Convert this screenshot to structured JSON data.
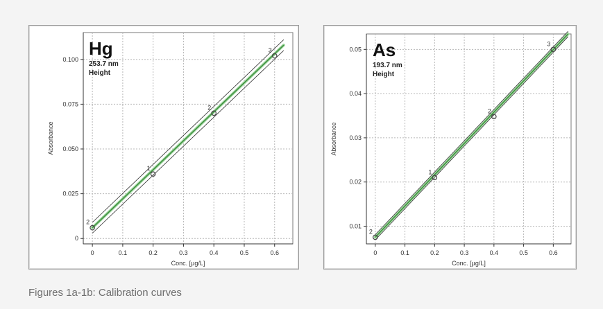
{
  "caption": "Figures 1a-1b: Calibration curves",
  "colors": {
    "fit_line": "#3c8a3c",
    "fit_highlight": "#9bd69b",
    "confidence_band": "#2f2f2f",
    "grid": "#b8b8b8",
    "marker": "#444444"
  },
  "chart_data": [
    {
      "type": "scatter",
      "title": "Hg",
      "subtitle": [
        "253.7 nm",
        "Height"
      ],
      "xlabel": "Conc. [µg/L]",
      "ylabel": "Absorbance",
      "xlim": [
        -0.03,
        0.66
      ],
      "ylim": [
        -0.003,
        0.115
      ],
      "xticks": [
        0,
        0.1,
        0.2,
        0.3,
        0.4,
        0.5,
        0.6
      ],
      "xtick_labels": [
        "0",
        "0.1",
        "0.2",
        "0.3",
        "0.4",
        "0.5",
        "0.6"
      ],
      "yticks": [
        0,
        0.025,
        0.05,
        0.075,
        0.1
      ],
      "ytick_labels": [
        "0",
        "0.025",
        "0.050",
        "0.075",
        "0.100"
      ],
      "grid": true,
      "fit_line": {
        "x": [
          0,
          0.63
        ],
        "y": [
          0.006,
          0.108
        ]
      },
      "band_width": 0.003,
      "points": [
        {
          "x": 0,
          "y": 0.006,
          "label": "2"
        },
        {
          "x": 0.2,
          "y": 0.036,
          "label": "1"
        },
        {
          "x": 0.4,
          "y": 0.07,
          "label": "2"
        },
        {
          "x": 0.6,
          "y": 0.102,
          "label": "3"
        }
      ]
    },
    {
      "type": "scatter",
      "title": "As",
      "subtitle": [
        "193.7 nm",
        "Height"
      ],
      "xlabel": "Conc. [µg/L]",
      "ylabel": "Absorbance",
      "xlim": [
        -0.03,
        0.66
      ],
      "ylim": [
        0.006,
        0.0535
      ],
      "xticks": [
        0,
        0.1,
        0.2,
        0.3,
        0.4,
        0.5,
        0.6
      ],
      "xtick_labels": [
        "0",
        "0.1",
        "0.2",
        "0.3",
        "0.4",
        "0.5",
        "0.6"
      ],
      "yticks": [
        0.01,
        0.02,
        0.03,
        0.04,
        0.05
      ],
      "ytick_labels": [
        "0.01",
        "0.02",
        "0.03",
        "0.04",
        "0.05"
      ],
      "grid": true,
      "fit_line": {
        "x": [
          0,
          0.65
        ],
        "y": [
          0.0075,
          0.0535
        ]
      },
      "band_width": 0.0006,
      "points": [
        {
          "x": 0,
          "y": 0.0075,
          "label": "2"
        },
        {
          "x": 0.2,
          "y": 0.021,
          "label": "1"
        },
        {
          "x": 0.4,
          "y": 0.0348,
          "label": "2"
        },
        {
          "x": 0.6,
          "y": 0.05,
          "label": "3"
        }
      ]
    }
  ]
}
